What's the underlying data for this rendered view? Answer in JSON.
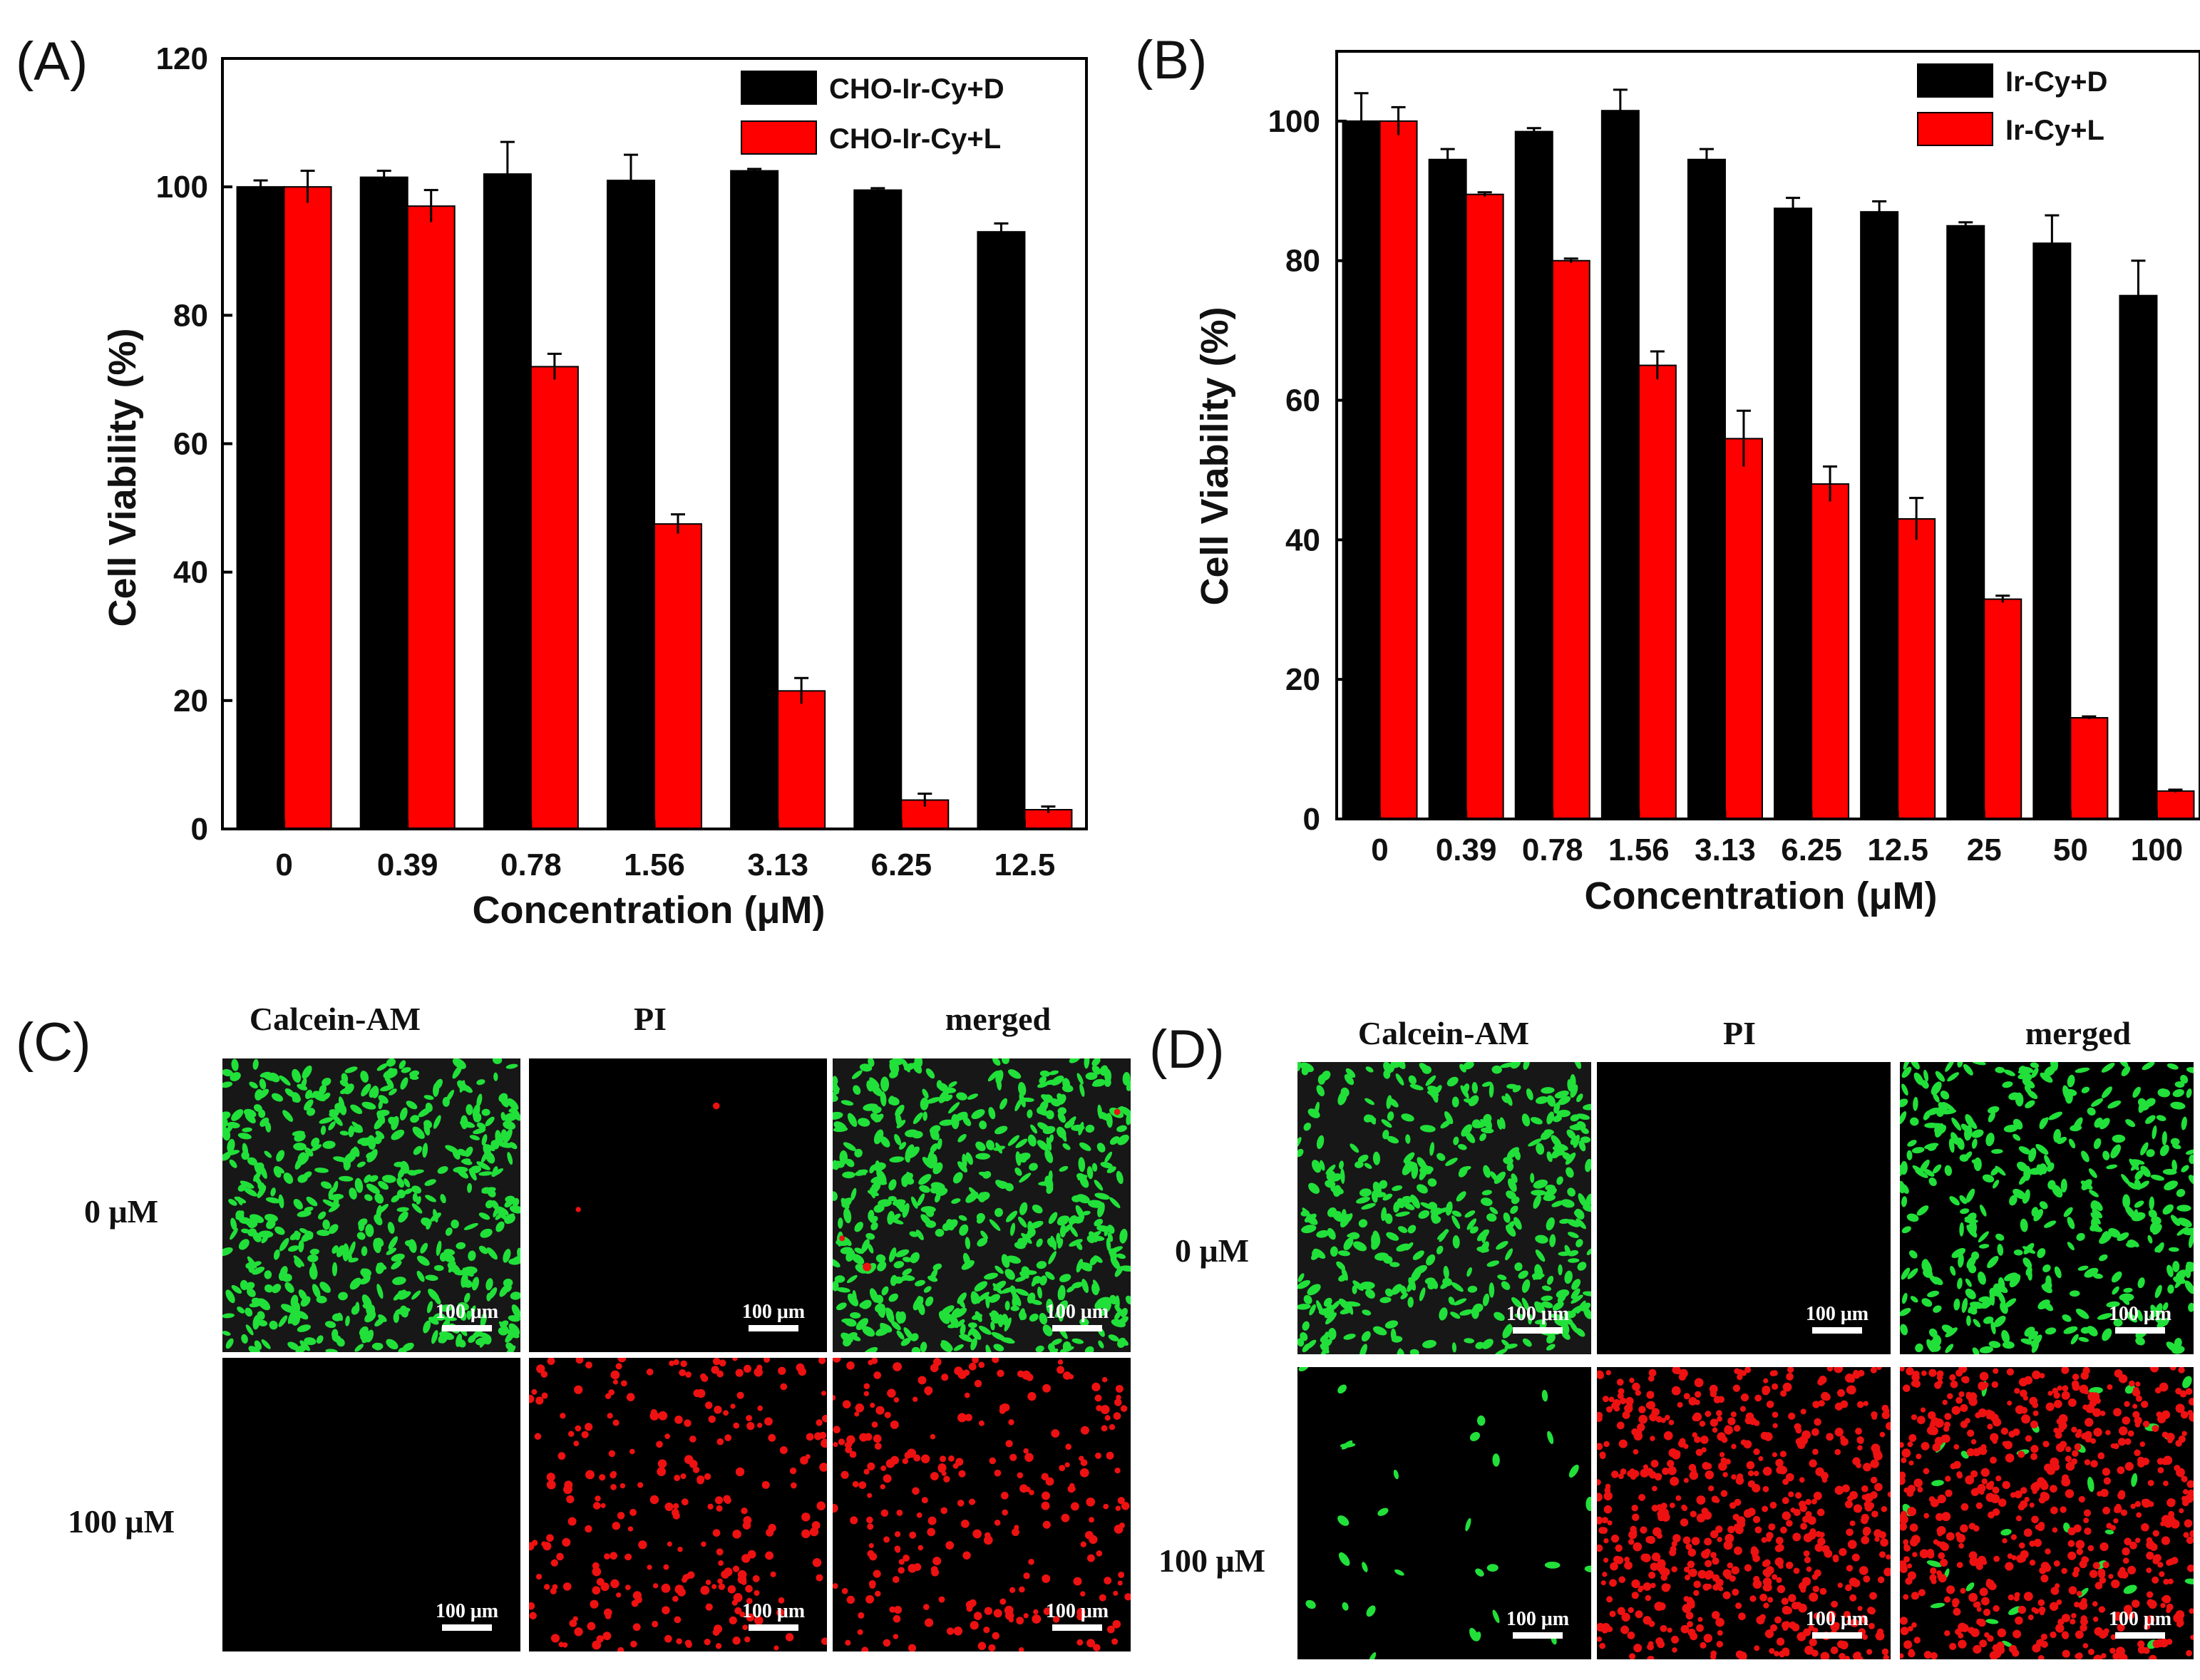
{
  "colors": {
    "series_d": "#000000",
    "series_l": "#ff0000",
    "green": "#22e03a",
    "red": "#ee1111",
    "grid_bg": "#000000"
  },
  "chart_data": [
    {
      "type": "bar",
      "panel_label": "(A)",
      "xlabel": "Concentration (μM)",
      "ylabel": "Cell Viability (%)",
      "ylim": [
        0,
        120
      ],
      "yticks": [
        "0",
        "20",
        "40",
        "60",
        "80",
        "100",
        "120"
      ],
      "ytick_values": [
        0,
        20,
        40,
        60,
        80,
        100,
        120
      ],
      "categories": [
        "0",
        "0.39",
        "0.78",
        "1.56",
        "3.13",
        "6.25",
        "12.5"
      ],
      "series": [
        {
          "name": "CHO-Ir-Cy+D",
          "values": [
            100,
            101.5,
            102,
            101,
            102.5,
            99.5,
            93
          ],
          "errors": [
            1,
            1,
            5,
            4,
            0.3,
            0.3,
            1.3
          ]
        },
        {
          "name": "CHO-Ir-Cy+L",
          "values": [
            100,
            97,
            72,
            47.5,
            21.5,
            4.5,
            3
          ],
          "errors": [
            2.5,
            2.5,
            2,
            1.5,
            2,
            1,
            0.5
          ]
        }
      ],
      "legend": "top-right"
    },
    {
      "type": "bar",
      "panel_label": "(B)",
      "xlabel": "Concentration (μM)",
      "ylabel": "Cell Viability (%)",
      "ylim": [
        0,
        110
      ],
      "yticks": [
        "0",
        "20",
        "40",
        "60",
        "80",
        "100"
      ],
      "ytick_values": [
        0,
        20,
        40,
        60,
        80,
        100
      ],
      "categories": [
        "0",
        "0.39",
        "0.78",
        "1.56",
        "3.13",
        "6.25",
        "12.5",
        "25",
        "50",
        "100"
      ],
      "series": [
        {
          "name": "Ir-Cy+D",
          "values": [
            100,
            94.5,
            98.5,
            101.5,
            94.5,
            87.5,
            87,
            85,
            82.5,
            75
          ],
          "errors": [
            4,
            1.5,
            0.5,
            3,
            1.5,
            1.5,
            1.5,
            0.5,
            4,
            5
          ]
        },
        {
          "name": "Ir-Cy+L",
          "values": [
            100,
            89.5,
            80,
            65,
            54.5,
            48,
            43,
            31.5,
            14.5,
            4
          ],
          "errors": [
            2,
            0.3,
            0.3,
            2,
            4,
            2.5,
            3,
            0.5,
            0.2,
            0.2
          ]
        }
      ],
      "legend": "top-right"
    }
  ],
  "microscopy": [
    {
      "panel_label": "(C)",
      "columns": [
        "Calcein-AM",
        "PI",
        "merged"
      ],
      "rows": [
        "0 μM",
        "100 μM"
      ],
      "scale_label": "100 μm",
      "cells": [
        {
          "green": 520,
          "red": 0,
          "gray": true
        },
        {
          "green": 0,
          "red": 2,
          "gray": false
        },
        {
          "green": 520,
          "red": 3,
          "gray": true
        },
        {
          "green": 0,
          "red": 0,
          "gray": false
        },
        {
          "green": 0,
          "red": 260,
          "gray": false
        },
        {
          "green": 0,
          "red": 260,
          "gray": false
        }
      ]
    },
    {
      "panel_label": "(D)",
      "columns": [
        "Calcein-AM",
        "PI",
        "merged"
      ],
      "rows": [
        "0 μM",
        "100 μM"
      ],
      "scale_label": "100 μm",
      "cells": [
        {
          "green": 420,
          "red": 0,
          "gray": true
        },
        {
          "green": 0,
          "red": 0,
          "gray": false
        },
        {
          "green": 380,
          "red": 0,
          "gray": false
        },
        {
          "green": 30,
          "red": 0,
          "gray": false
        },
        {
          "green": 0,
          "red": 620,
          "gray": false
        },
        {
          "green": 30,
          "red": 620,
          "gray": false
        }
      ]
    }
  ]
}
